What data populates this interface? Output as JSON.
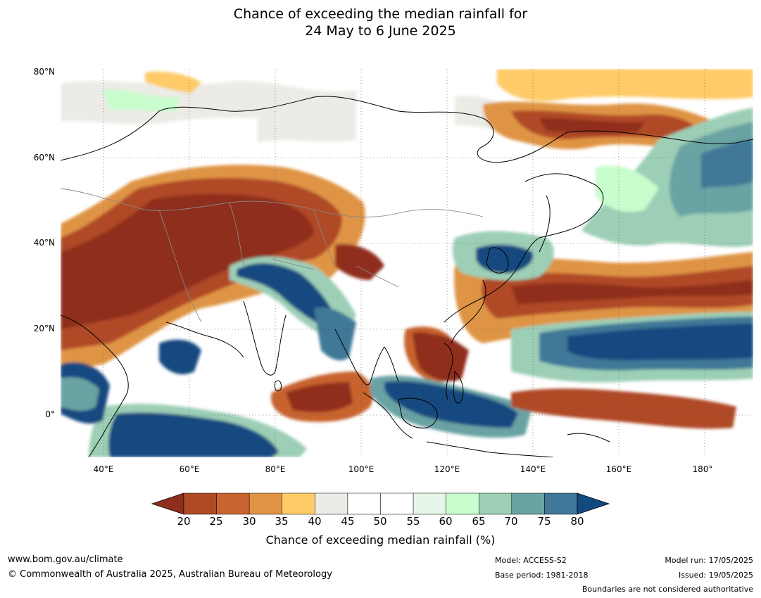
{
  "title_line1": "Chance of exceeding the median rainfall for",
  "title_line2": "24 May to 6 June 2025",
  "map": {
    "region": "Asia / Indian Ocean / Western Pacific",
    "lat_labels": [
      "80°N",
      "60°N",
      "40°N",
      "20°N",
      "0°"
    ],
    "lon_labels": [
      "40°E",
      "60°E",
      "80°E",
      "100°E",
      "120°E",
      "140°E",
      "160°E",
      "180°"
    ],
    "features": [
      "dry-anomaly-middle-east-central-asia",
      "wet-anomaly-tibetan-plateau-bay-of-bengal",
      "dry-anomaly-northern-pacific-band",
      "wet-anomaly-tropical-pacific-band",
      "dry-anomaly-south-china-sea",
      "wet-anomaly-maritime-continent",
      "dry-anomaly-equatorial-indian-ocean",
      "wet-anomaly-southern-indian-ocean",
      "wet-anomaly-north-pacific-east"
    ]
  },
  "colorbar": {
    "ticks": [
      "20",
      "25",
      "30",
      "35",
      "40",
      "45",
      "50",
      "55",
      "60",
      "65",
      "70",
      "75",
      "80"
    ],
    "colors": [
      "#8f2e1c",
      "#b04a26",
      "#c8642f",
      "#df9445",
      "#fecb67",
      "#ecebe6",
      "#ffffff",
      "#ffffff",
      "#e6f5e8",
      "#c8fdcd",
      "#9ccfb6",
      "#6aa3a4",
      "#3f7898",
      "#124a80"
    ],
    "title": "Chance of exceeding median rainfall (%)"
  },
  "footer": {
    "url": "www.bom.gov.au/climate",
    "copyright": "© Commonwealth of Australia 2025, Australian Bureau of Meteorology",
    "model": "Model: ACCESS-S2",
    "base_period": "Base period: 1981-2018",
    "model_run": "Model run: 17/05/2025",
    "issued": "Issued: 19/05/2025",
    "disclaimer": "Boundaries are not considered authoritative"
  }
}
